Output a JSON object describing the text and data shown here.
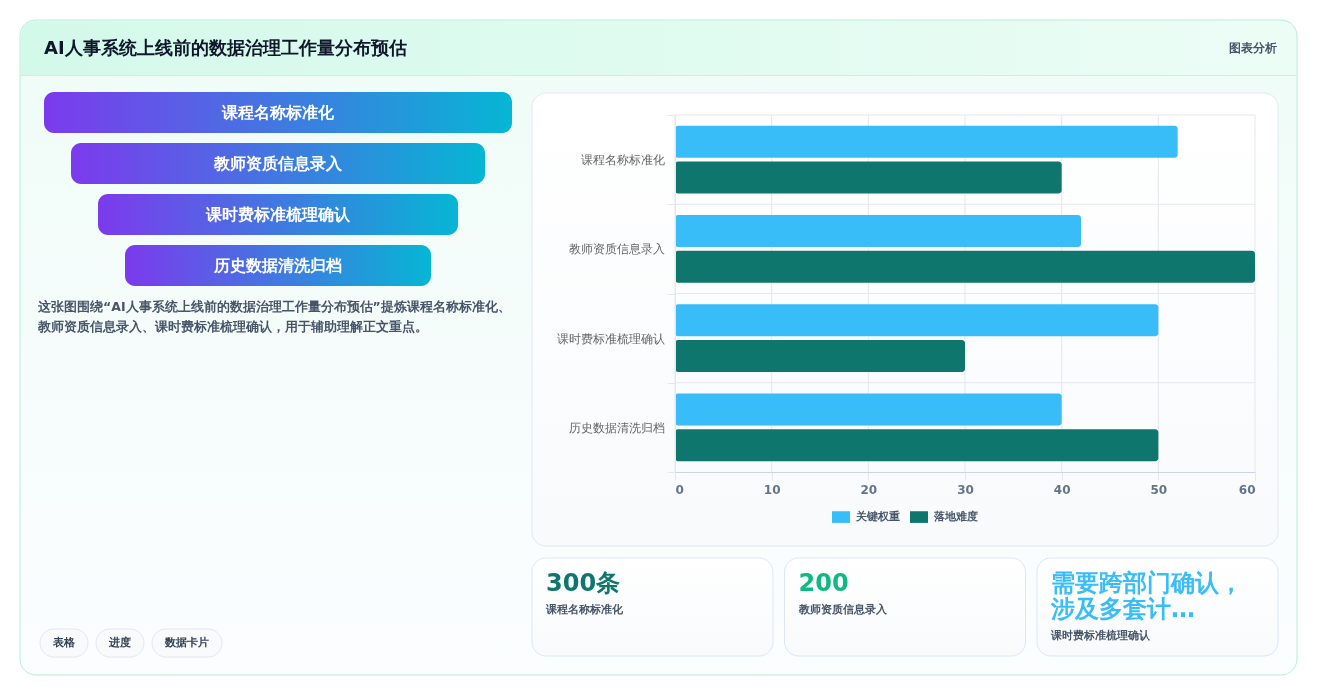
{
  "chart_data": [
    {
      "type": "other",
      "title": "AI人事系统上线前的数据治理工作量分布预估",
      "annotations": [
        "图表分析"
      ]
    },
    {
      "type": "other",
      "categories": [
        "课程名称标准化",
        "教师资质信息录入",
        "课时费标准梳理确认",
        "历史数据清洗归档"
      ],
      "annotations": [
        "这张图围绕“AI人事系统上线前的数据治理工作量分布预估”提炼课程名称标准化、教师资质信息录入、课时费标准梳理确认，用于辅助理解正文重点。",
        "表格",
        "进度",
        "数据卡片"
      ]
    },
    {
      "type": "bar",
      "orientation": "horizontal",
      "categories": [
        "课程名称标准化",
        "教师资质信息录入",
        "课时费标准梳理确认",
        "历史数据清洗归档"
      ],
      "series": [
        {
          "name": "关键权重",
          "color": "#38bdf8",
          "values": [
            52,
            42,
            50,
            40
          ]
        },
        {
          "name": "落地难度",
          "color": "#0f766e",
          "values": [
            40,
            60,
            30,
            50
          ]
        }
      ],
      "xlim": [
        0,
        60
      ],
      "xticks": [
        0,
        10,
        20,
        30,
        40,
        50,
        60
      ],
      "grid": true,
      "legend": "bottom"
    },
    {
      "type": "other",
      "categories": [
        "课程名称标准化",
        "教师资质信息录入",
        "课时费标准梳理确认"
      ],
      "value_labels": [
        "300条",
        "200",
        "需要跨部门确认，涉及多套计…"
      ],
      "colors": [
        "#0f766e",
        "#10b981",
        "#38bdf8"
      ]
    }
  ]
}
